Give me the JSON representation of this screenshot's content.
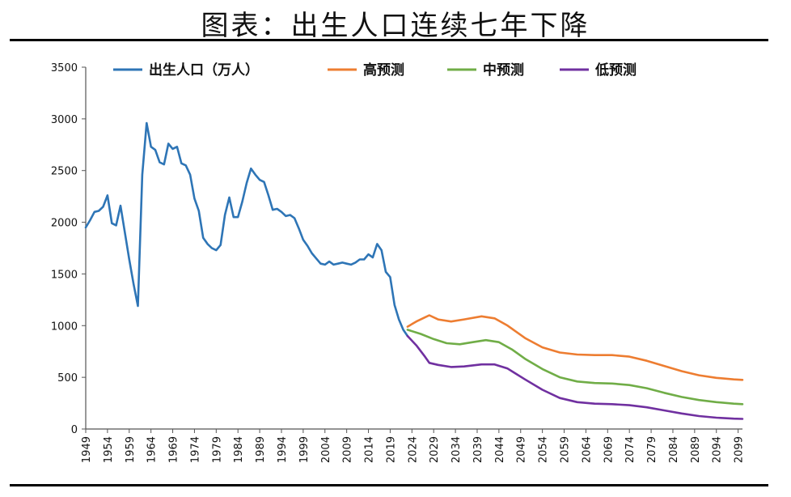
{
  "title": "图表：出生人口连续七年下降",
  "chart_data": {
    "type": "line",
    "ylim": [
      0,
      3500
    ],
    "yticks": [
      0,
      500,
      1000,
      1500,
      2000,
      2500,
      3000,
      3500
    ],
    "xlim": [
      1949,
      2100
    ],
    "xticks": [
      1949,
      1954,
      1959,
      1964,
      1969,
      1974,
      1979,
      1984,
      1989,
      1994,
      1999,
      2004,
      2009,
      2014,
      2019,
      2024,
      2029,
      2034,
      2039,
      2044,
      2049,
      2054,
      2059,
      2064,
      2069,
      2074,
      2079,
      2084,
      2089,
      2094,
      2099
    ],
    "legend_position": "top",
    "grid": false,
    "series": [
      {
        "name": "出生人口（万人）",
        "color": "#2E75B6",
        "points": [
          [
            1949,
            1950
          ],
          [
            1950,
            2020
          ],
          [
            1951,
            2100
          ],
          [
            1952,
            2110
          ],
          [
            1953,
            2150
          ],
          [
            1954,
            2260
          ],
          [
            1955,
            1990
          ],
          [
            1956,
            1970
          ],
          [
            1957,
            2160
          ],
          [
            1958,
            1900
          ],
          [
            1959,
            1640
          ],
          [
            1960,
            1400
          ],
          [
            1961,
            1190
          ],
          [
            1962,
            2460
          ],
          [
            1963,
            2960
          ],
          [
            1964,
            2730
          ],
          [
            1965,
            2700
          ],
          [
            1966,
            2580
          ],
          [
            1967,
            2560
          ],
          [
            1968,
            2760
          ],
          [
            1969,
            2710
          ],
          [
            1970,
            2730
          ],
          [
            1971,
            2570
          ],
          [
            1972,
            2550
          ],
          [
            1973,
            2460
          ],
          [
            1974,
            2230
          ],
          [
            1975,
            2110
          ],
          [
            1976,
            1850
          ],
          [
            1977,
            1790
          ],
          [
            1978,
            1750
          ],
          [
            1979,
            1730
          ],
          [
            1980,
            1780
          ],
          [
            1981,
            2070
          ],
          [
            1982,
            2240
          ],
          [
            1983,
            2050
          ],
          [
            1984,
            2050
          ],
          [
            1985,
            2200
          ],
          [
            1986,
            2380
          ],
          [
            1987,
            2520
          ],
          [
            1988,
            2460
          ],
          [
            1989,
            2410
          ],
          [
            1990,
            2390
          ],
          [
            1991,
            2260
          ],
          [
            1992,
            2120
          ],
          [
            1993,
            2130
          ],
          [
            1994,
            2100
          ],
          [
            1995,
            2060
          ],
          [
            1996,
            2070
          ],
          [
            1997,
            2040
          ],
          [
            1998,
            1940
          ],
          [
            1999,
            1830
          ],
          [
            2000,
            1770
          ],
          [
            2001,
            1700
          ],
          [
            2002,
            1650
          ],
          [
            2003,
            1600
          ],
          [
            2004,
            1590
          ],
          [
            2005,
            1620
          ],
          [
            2006,
            1590
          ],
          [
            2007,
            1600
          ],
          [
            2008,
            1610
          ],
          [
            2009,
            1600
          ],
          [
            2010,
            1590
          ],
          [
            2011,
            1610
          ],
          [
            2012,
            1640
          ],
          [
            2013,
            1640
          ],
          [
            2014,
            1690
          ],
          [
            2015,
            1660
          ],
          [
            2016,
            1790
          ],
          [
            2017,
            1730
          ],
          [
            2018,
            1520
          ],
          [
            2019,
            1470
          ],
          [
            2020,
            1200
          ],
          [
            2021,
            1060
          ],
          [
            2022,
            960
          ],
          [
            2023,
            900
          ]
        ]
      },
      {
        "name": "高预测",
        "color": "#ED7D31",
        "points": [
          [
            2023,
            990
          ],
          [
            2025,
            1040
          ],
          [
            2027,
            1080
          ],
          [
            2028,
            1100
          ],
          [
            2030,
            1060
          ],
          [
            2033,
            1040
          ],
          [
            2036,
            1060
          ],
          [
            2040,
            1090
          ],
          [
            2043,
            1070
          ],
          [
            2046,
            1000
          ],
          [
            2050,
            880
          ],
          [
            2054,
            790
          ],
          [
            2058,
            740
          ],
          [
            2062,
            720
          ],
          [
            2066,
            715
          ],
          [
            2070,
            715
          ],
          [
            2074,
            700
          ],
          [
            2078,
            660
          ],
          [
            2082,
            610
          ],
          [
            2086,
            560
          ],
          [
            2090,
            520
          ],
          [
            2094,
            495
          ],
          [
            2098,
            480
          ],
          [
            2100,
            475
          ]
        ]
      },
      {
        "name": "中预测",
        "color": "#70AD47",
        "points": [
          [
            2023,
            960
          ],
          [
            2026,
            920
          ],
          [
            2029,
            870
          ],
          [
            2032,
            830
          ],
          [
            2035,
            820
          ],
          [
            2038,
            840
          ],
          [
            2041,
            860
          ],
          [
            2044,
            840
          ],
          [
            2047,
            770
          ],
          [
            2050,
            680
          ],
          [
            2054,
            580
          ],
          [
            2058,
            500
          ],
          [
            2062,
            460
          ],
          [
            2066,
            445
          ],
          [
            2070,
            440
          ],
          [
            2074,
            425
          ],
          [
            2078,
            395
          ],
          [
            2082,
            350
          ],
          [
            2086,
            310
          ],
          [
            2090,
            280
          ],
          [
            2094,
            260
          ],
          [
            2098,
            245
          ],
          [
            2100,
            240
          ]
        ]
      },
      {
        "name": "低预测",
        "color": "#7030A0",
        "points": [
          [
            2023,
            900
          ],
          [
            2025,
            810
          ],
          [
            2027,
            700
          ],
          [
            2028,
            640
          ],
          [
            2030,
            620
          ],
          [
            2033,
            600
          ],
          [
            2036,
            605
          ],
          [
            2040,
            625
          ],
          [
            2043,
            625
          ],
          [
            2046,
            585
          ],
          [
            2050,
            480
          ],
          [
            2054,
            380
          ],
          [
            2058,
            300
          ],
          [
            2062,
            260
          ],
          [
            2066,
            245
          ],
          [
            2070,
            240
          ],
          [
            2074,
            230
          ],
          [
            2078,
            210
          ],
          [
            2082,
            180
          ],
          [
            2086,
            150
          ],
          [
            2090,
            125
          ],
          [
            2094,
            110
          ],
          [
            2098,
            100
          ],
          [
            2100,
            98
          ]
        ]
      }
    ]
  }
}
